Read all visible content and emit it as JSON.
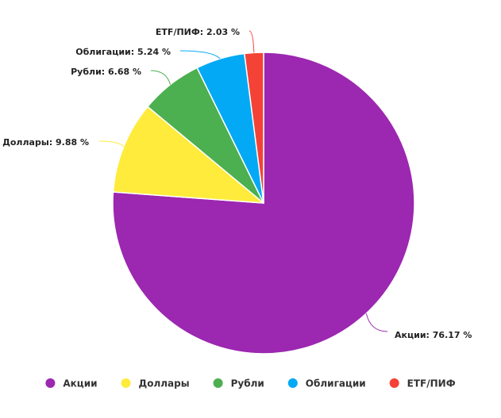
{
  "chart_data": {
    "type": "pie",
    "title": "",
    "unit": "%",
    "slices": [
      {
        "label": "Акции",
        "value": 76.17,
        "color": "#9c27b0",
        "data_label": "Акции: 76.17 %"
      },
      {
        "label": "Доллары",
        "value": 9.88,
        "color": "#ffeb3b",
        "data_label": "Доллары: 9.88 %"
      },
      {
        "label": "Рубли",
        "value": 6.68,
        "color": "#4caf50",
        "data_label": "Рубли: 6.68 %"
      },
      {
        "label": "Облигации",
        "value": 5.24,
        "color": "#03a9f4",
        "data_label": "Облигации: 5.24 %"
      },
      {
        "label": "ETF/ПИФ",
        "value": 2.03,
        "color": "#f44336",
        "data_label": "ETF/ПИФ: 2.03 %"
      }
    ],
    "start_angle_deg": 0,
    "direction": "clockwise",
    "legend_position": "bottom-center"
  }
}
